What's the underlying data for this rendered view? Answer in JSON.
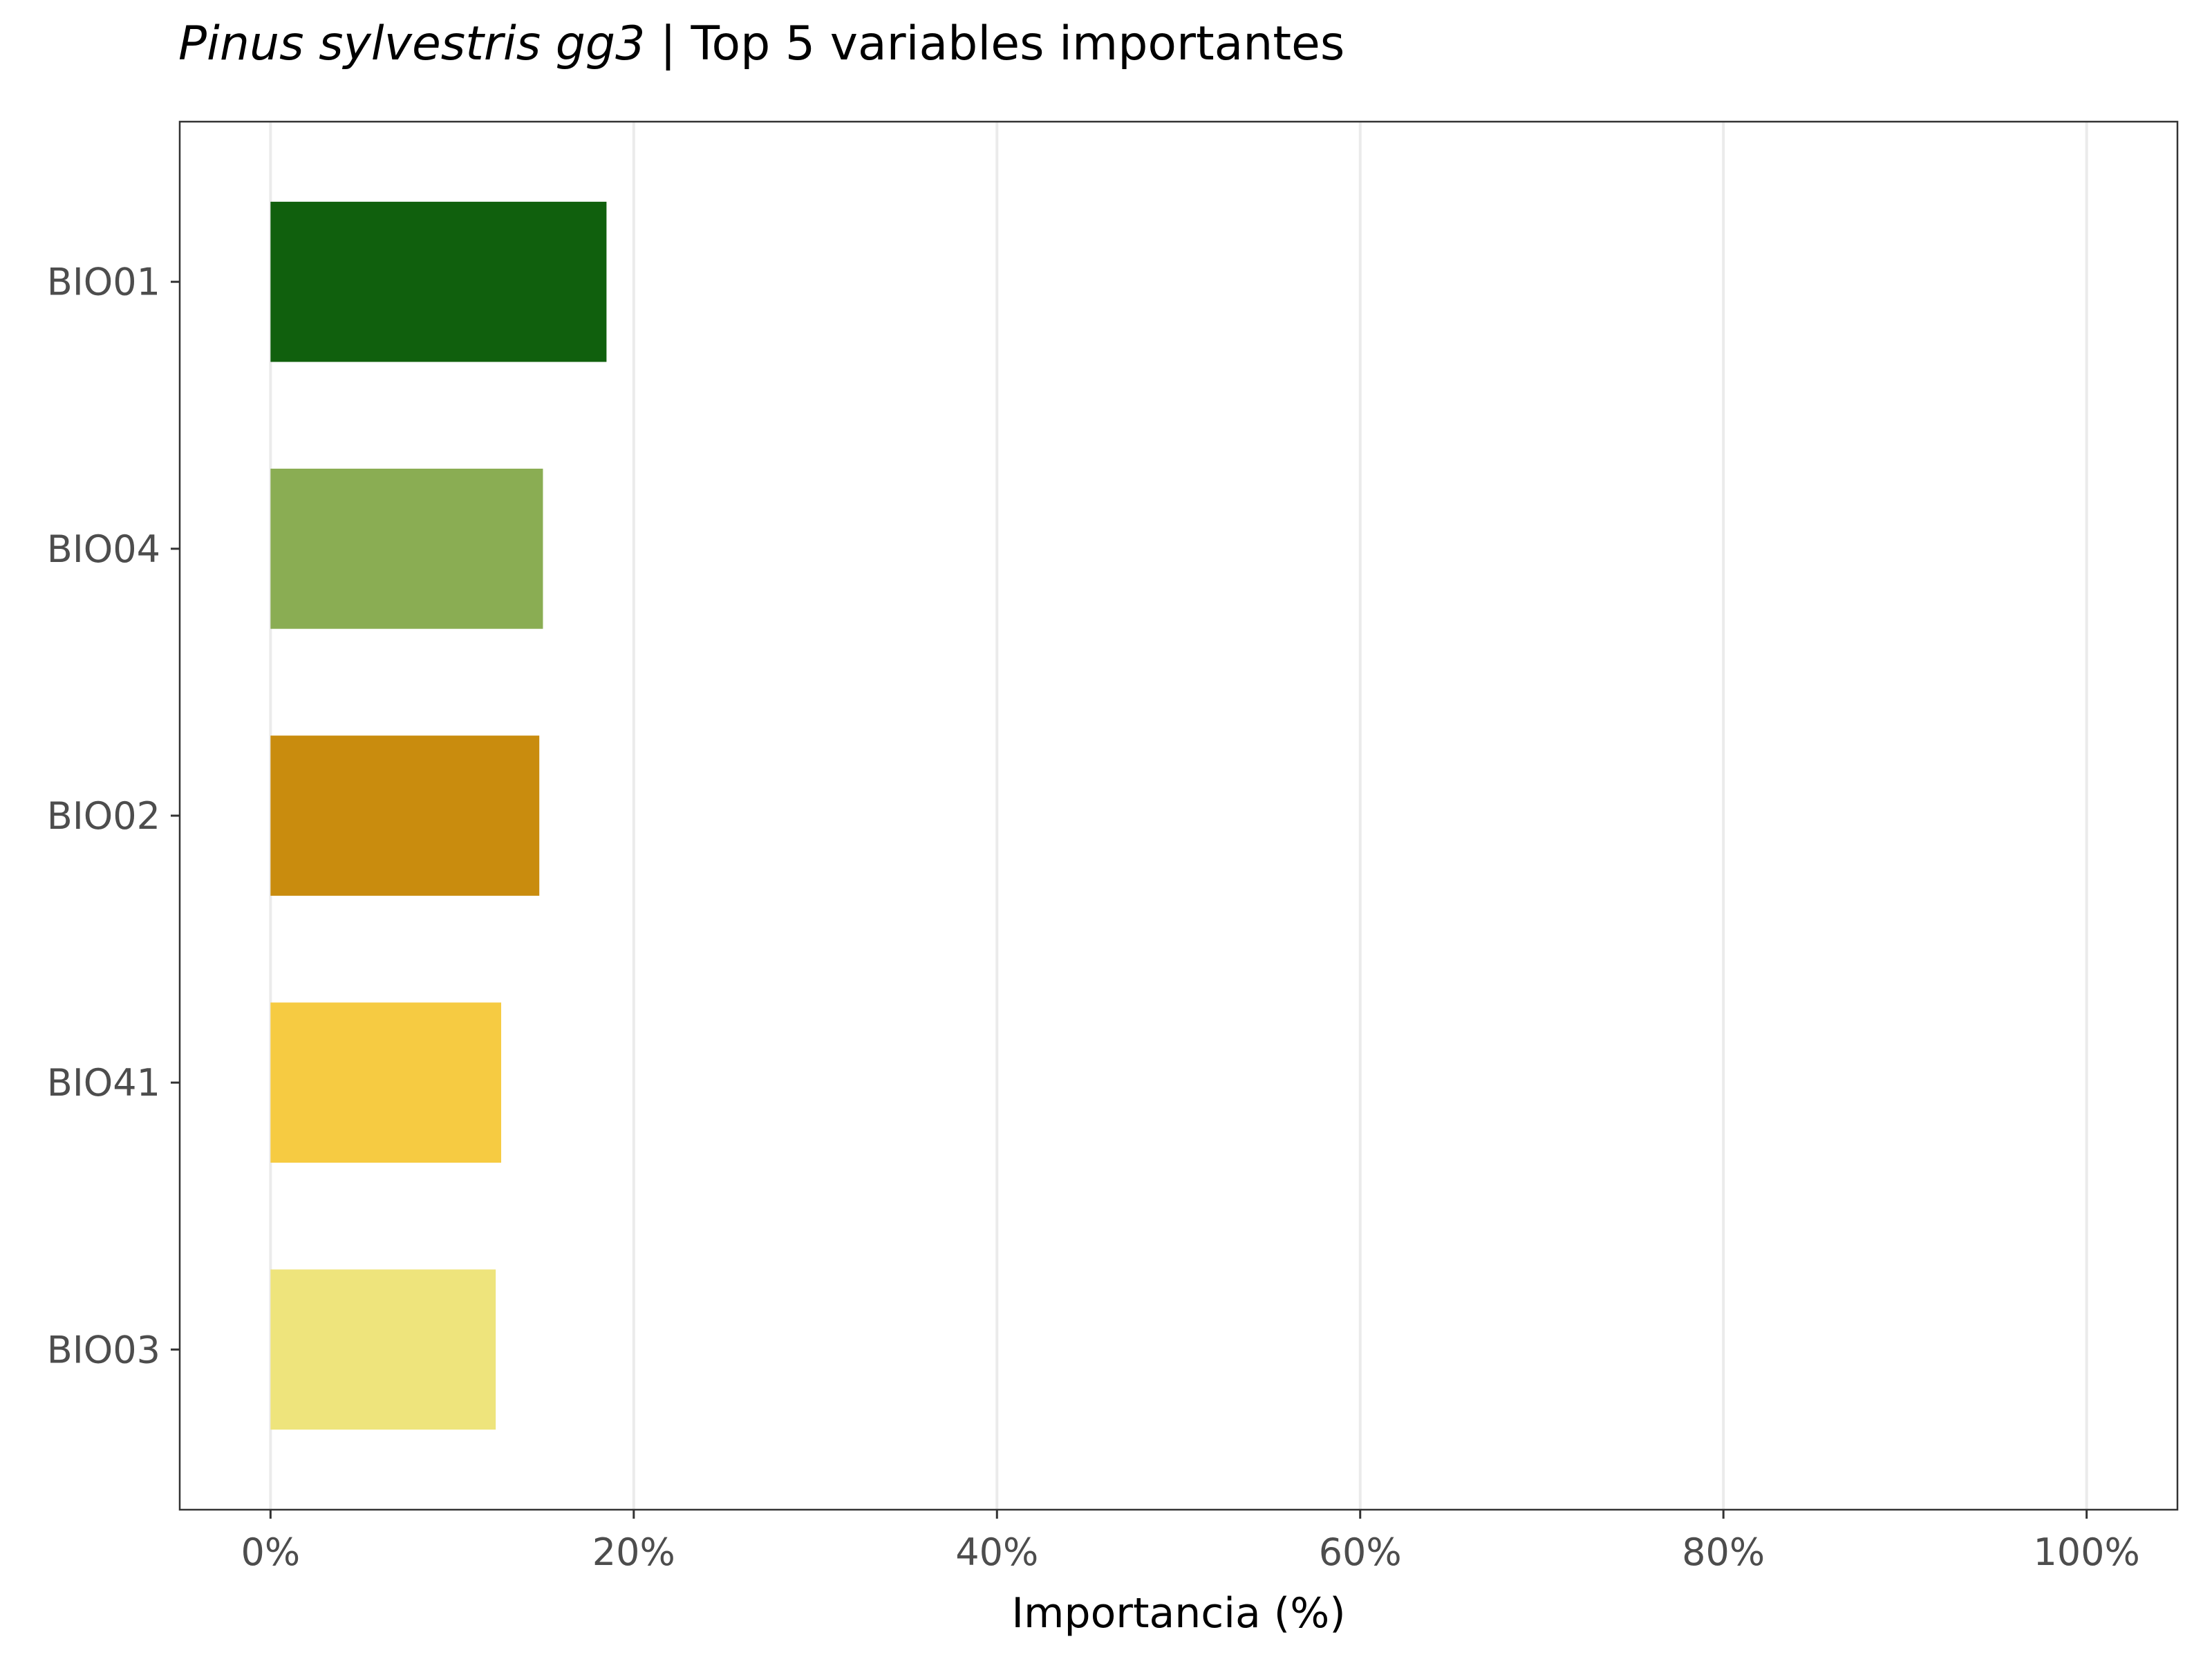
{
  "chart_data": {
    "type": "bar",
    "orientation": "horizontal",
    "title": {
      "species": "Pinus sylvestris gg3",
      "rest": " | Top 5 variables importantes"
    },
    "xlabel": "Importancia (%)",
    "ylabel": "",
    "categories": [
      "BIO01",
      "BIO04",
      "BIO02",
      "BIO41",
      "BIO03"
    ],
    "values": [
      18.5,
      15.0,
      14.8,
      12.7,
      12.4
    ],
    "colors": [
      "#10600d",
      "#8aad53",
      "#c98c0e",
      "#f6cb42",
      "#eee47c"
    ],
    "xlim": [
      -5,
      105
    ],
    "xticks": [
      0,
      20,
      40,
      60,
      80,
      100
    ],
    "xtick_labels": [
      "0%",
      "20%",
      "40%",
      "60%",
      "80%",
      "100%"
    ],
    "grid": "vertical-major",
    "legend": "none"
  }
}
